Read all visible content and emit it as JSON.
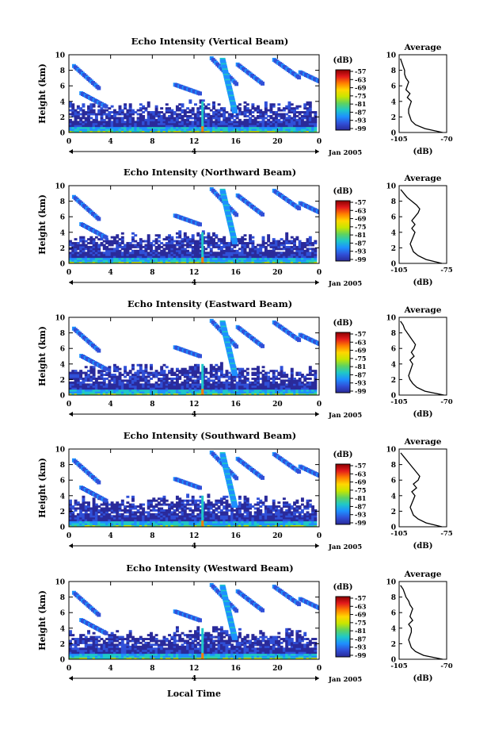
{
  "figure": {
    "date_label": "Jan 2005",
    "day_label": "4",
    "xlabel_bottom": "Local Time",
    "avg_title": "Average",
    "avg_xlabel": "(dB)",
    "colorbar_title": "(dB)",
    "colorbar_ticks": [
      "-57",
      "-63",
      "-69",
      "-75",
      "-81",
      "-87",
      "-93",
      "-99"
    ],
    "colorbar_stops": [
      "#8b0000",
      "#e41a1c",
      "#ff7f00",
      "#ffd700",
      "#c8e600",
      "#5fd35f",
      "#1fc8c8",
      "#1e90ff",
      "#3050d8",
      "#2a2a9a"
    ]
  },
  "chart_data": [
    {
      "type": "heatmap",
      "title": "Echo Intensity (Vertical Beam)",
      "ylabel": "Height (km)",
      "xlim": [
        0,
        24
      ],
      "ylim": [
        0,
        10
      ],
      "xticks": [
        "0",
        "4",
        "8",
        "12",
        "16",
        "20",
        "0"
      ],
      "yticks": [
        "0",
        "2",
        "4",
        "6",
        "8",
        "10"
      ],
      "profile": {
        "xticks": [
          "-105",
          "-70"
        ],
        "xlim": [
          -105,
          -70
        ],
        "height_km": [
          0,
          0.5,
          1,
          1.5,
          2,
          2.5,
          3,
          3.5,
          4,
          4.5,
          5,
          5.5,
          6,
          6.5,
          7,
          7.5,
          8,
          8.5,
          9,
          9.5
        ],
        "db": [
          -73,
          -86,
          -93,
          -96,
          -97,
          -98,
          -98,
          -97,
          -96,
          -99,
          -97,
          -100,
          -99,
          -98,
          -100,
          -101,
          -101,
          -102,
          -103,
          -104
        ]
      }
    },
    {
      "type": "heatmap",
      "title": "Echo Intensity (Northward Beam)",
      "ylabel": "Height (km)",
      "xlim": [
        0,
        24
      ],
      "ylim": [
        0,
        10
      ],
      "xticks": [
        "0",
        "4",
        "8",
        "12",
        "16",
        "20",
        "0"
      ],
      "yticks": [
        "0",
        "2",
        "4",
        "6",
        "8",
        "10"
      ],
      "profile": {
        "xticks": [
          "-105",
          "-75"
        ],
        "xlim": [
          -105,
          -75
        ],
        "height_km": [
          0,
          0.5,
          1,
          1.5,
          2,
          2.5,
          3,
          3.5,
          4,
          4.5,
          5,
          5.5,
          6,
          6.5,
          7,
          7.5,
          8,
          8.5,
          9,
          9.5
        ],
        "db": [
          -78,
          -88,
          -93,
          -96,
          -97,
          -98,
          -97,
          -96,
          -95,
          -97,
          -95,
          -97,
          -95,
          -93,
          -92,
          -94,
          -97,
          -100,
          -102,
          -104
        ]
      }
    },
    {
      "type": "heatmap",
      "title": "Echo Intensity (Eastward Beam)",
      "ylabel": "Height (km)",
      "xlim": [
        0,
        24
      ],
      "ylim": [
        0,
        10
      ],
      "xticks": [
        "0",
        "4",
        "8",
        "12",
        "16",
        "20",
        "0"
      ],
      "yticks": [
        "0",
        "2",
        "4",
        "6",
        "8",
        "10"
      ],
      "profile": {
        "xticks": [
          "-105",
          "-70"
        ],
        "xlim": [
          -105,
          -70
        ],
        "height_km": [
          0,
          0.5,
          1,
          1.5,
          2,
          2.5,
          3,
          3.5,
          4,
          4.5,
          5,
          5.5,
          6,
          6.5,
          7,
          7.5,
          8,
          8.5,
          9,
          9.5
        ],
        "db": [
          -72,
          -86,
          -92,
          -95,
          -97,
          -98,
          -97,
          -96,
          -95,
          -97,
          -94,
          -96,
          -94,
          -93,
          -95,
          -97,
          -99,
          -101,
          -102,
          -104
        ]
      }
    },
    {
      "type": "heatmap",
      "title": "Echo Intensity (Southward Beam)",
      "ylabel": "Height (km)",
      "xlim": [
        0,
        24
      ],
      "ylim": [
        0,
        10
      ],
      "xticks": [
        "0",
        "4",
        "8",
        "12",
        "16",
        "20",
        "0"
      ],
      "yticks": [
        "0",
        "2",
        "4",
        "6",
        "8",
        "10"
      ],
      "profile": {
        "xticks": [
          "-105",
          "-75"
        ],
        "xlim": [
          -105,
          -75
        ],
        "height_km": [
          0,
          0.5,
          1,
          1.5,
          2,
          2.5,
          3,
          3.5,
          4,
          4.5,
          5,
          5.5,
          6,
          6.5,
          7,
          7.5,
          8,
          8.5,
          9,
          9.5
        ],
        "db": [
          -78,
          -88,
          -93,
          -96,
          -97,
          -98,
          -97,
          -96,
          -95,
          -97,
          -94,
          -96,
          -93,
          -92,
          -94,
          -96,
          -98,
          -100,
          -102,
          -104
        ]
      }
    },
    {
      "type": "heatmap",
      "title": "Echo Intensity (Westward Beam)",
      "ylabel": "Height (km)",
      "xlabel": "Local Time",
      "xlim": [
        0,
        24
      ],
      "ylim": [
        0,
        10
      ],
      "xticks": [
        "0",
        "4",
        "8",
        "12",
        "16",
        "20",
        "0"
      ],
      "yticks": [
        "0",
        "2",
        "4",
        "6",
        "8",
        "10"
      ],
      "profile": {
        "xticks": [
          "-105",
          "-70"
        ],
        "xlim": [
          -105,
          -70
        ],
        "height_km": [
          0,
          0.5,
          1,
          1.5,
          2,
          2.5,
          3,
          3.5,
          4,
          4.5,
          5,
          5.5,
          6,
          6.5,
          7,
          7.5,
          8,
          8.5,
          9,
          9.5
        ],
        "db": [
          -73,
          -87,
          -93,
          -96,
          -97,
          -98,
          -97,
          -96,
          -96,
          -98,
          -95,
          -97,
          -96,
          -95,
          -97,
          -98,
          -100,
          -101,
          -102,
          -104
        ]
      }
    }
  ]
}
